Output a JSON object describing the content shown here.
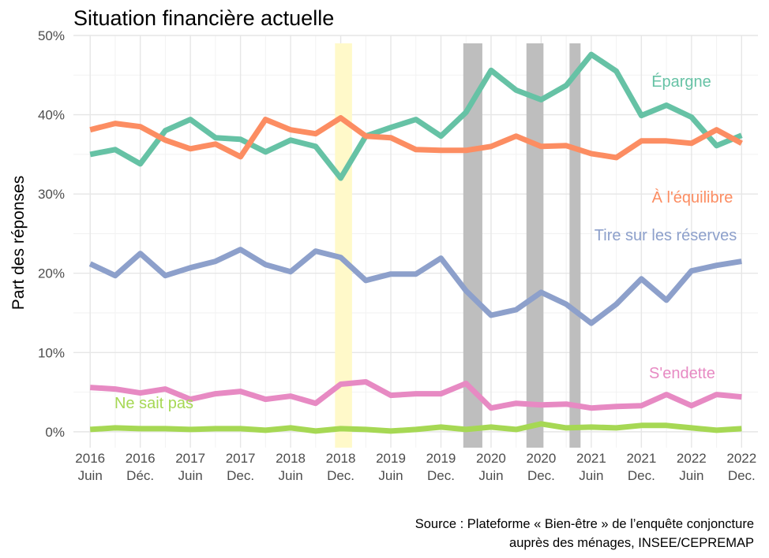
{
  "chart_data": {
    "type": "line",
    "title": "Situation financière actuelle",
    "ylabel": "Part des réponses",
    "ylim": [
      -2,
      50
    ],
    "yticks": [
      0,
      10,
      20,
      30,
      40,
      50
    ],
    "ytick_labels": [
      "0%",
      "10%",
      "20%",
      "30%",
      "40%",
      "50%"
    ],
    "x": [
      2016.417,
      2016.667,
      2016.917,
      2017.167,
      2017.417,
      2017.667,
      2017.917,
      2018.167,
      2018.417,
      2018.667,
      2018.917,
      2019.167,
      2019.417,
      2019.667,
      2019.917,
      2020.167,
      2020.417,
      2020.667,
      2020.917,
      2021.167,
      2021.417,
      2021.667,
      2021.917,
      2022.167,
      2022.417,
      2022.667,
      2022.917
    ],
    "xlim": [
      2016.25,
      2023.08
    ],
    "xticks": [
      {
        "value": 2016.417,
        "year": "2016",
        "month": "Juin"
      },
      {
        "value": 2016.917,
        "year": "2016",
        "month": "Déc."
      },
      {
        "value": 2017.417,
        "year": "2017",
        "month": "Juin"
      },
      {
        "value": 2017.917,
        "year": "2017",
        "month": "Dec."
      },
      {
        "value": 2018.417,
        "year": "2018",
        "month": "Juin"
      },
      {
        "value": 2018.917,
        "year": "2018",
        "month": "Dec."
      },
      {
        "value": 2019.417,
        "year": "2019",
        "month": "Juin"
      },
      {
        "value": 2019.917,
        "year": "2019",
        "month": "Dec."
      },
      {
        "value": 2020.417,
        "year": "2020",
        "month": "Juin"
      },
      {
        "value": 2020.917,
        "year": "2020",
        "month": "Dec."
      },
      {
        "value": 2021.417,
        "year": "2021",
        "month": "Juin"
      },
      {
        "value": 2021.917,
        "year": "2021",
        "month": "Dec."
      },
      {
        "value": 2022.417,
        "year": "2022",
        "month": "Juin"
      },
      {
        "value": 2022.917,
        "year": "2022",
        "month": "Dec."
      }
    ],
    "bands": [
      {
        "start": 2018.86,
        "end": 2019.03,
        "color": "#fff9c9"
      },
      {
        "start": 2020.14,
        "end": 2020.33,
        "color": "#bebebe"
      },
      {
        "start": 2020.77,
        "end": 2020.94,
        "color": "#bebebe"
      },
      {
        "start": 2021.2,
        "end": 2021.31,
        "color": "#bebebe"
      }
    ],
    "series": [
      {
        "name": "Épargne",
        "color": "#66c2a5",
        "values": [
          35.0,
          35.6,
          33.8,
          38.0,
          39.4,
          37.1,
          36.9,
          35.3,
          36.8,
          36.0,
          32.0,
          37.3,
          38.4,
          39.4,
          37.3,
          40.3,
          45.6,
          43.1,
          41.9,
          43.7,
          47.6,
          45.5,
          39.9,
          41.2,
          39.7,
          36.1,
          37.4
        ]
      },
      {
        "name": "À l'équilibre",
        "color": "#fc8d62",
        "values": [
          38.1,
          38.9,
          38.5,
          36.8,
          35.7,
          36.3,
          34.7,
          39.4,
          38.1,
          37.6,
          39.6,
          37.3,
          37.1,
          35.6,
          35.5,
          35.5,
          36.0,
          37.3,
          36.0,
          36.1,
          35.1,
          34.6,
          36.7,
          36.7,
          36.4,
          38.1,
          36.4
        ]
      },
      {
        "name": "Tire sur les réserves",
        "color": "#8da0cb",
        "values": [
          21.2,
          19.7,
          22.5,
          19.7,
          20.7,
          21.5,
          23.0,
          21.1,
          20.2,
          22.8,
          22.0,
          19.1,
          19.9,
          19.9,
          21.9,
          17.8,
          14.7,
          15.4,
          17.6,
          16.1,
          13.7,
          16.1,
          19.3,
          16.6,
          20.3,
          21.0,
          21.5
        ]
      },
      {
        "name": "S'endette",
        "color": "#e78ac3",
        "values": [
          5.6,
          5.4,
          4.9,
          5.4,
          4.1,
          4.8,
          5.1,
          4.1,
          4.5,
          3.6,
          6.0,
          6.3,
          4.6,
          4.8,
          4.8,
          6.1,
          3.0,
          3.6,
          3.4,
          3.5,
          3.0,
          3.2,
          3.3,
          4.7,
          3.3,
          4.7,
          4.4
        ]
      },
      {
        "name": "Ne sait pas",
        "color": "#a6d854",
        "values": [
          0.3,
          0.5,
          0.4,
          0.4,
          0.3,
          0.4,
          0.4,
          0.2,
          0.5,
          0.1,
          0.4,
          0.3,
          0.1,
          0.3,
          0.6,
          0.3,
          0.6,
          0.3,
          1.0,
          0.5,
          0.6,
          0.5,
          0.8,
          0.8,
          0.5,
          0.2,
          0.4
        ]
      }
    ],
    "caption": [
      "Source : Plateforme « Bien-être » de l’enquête conjoncture",
      "auprès des ménages, INSEE/CEPREMAP"
    ],
    "grid": true,
    "legend": "direct labels"
  }
}
